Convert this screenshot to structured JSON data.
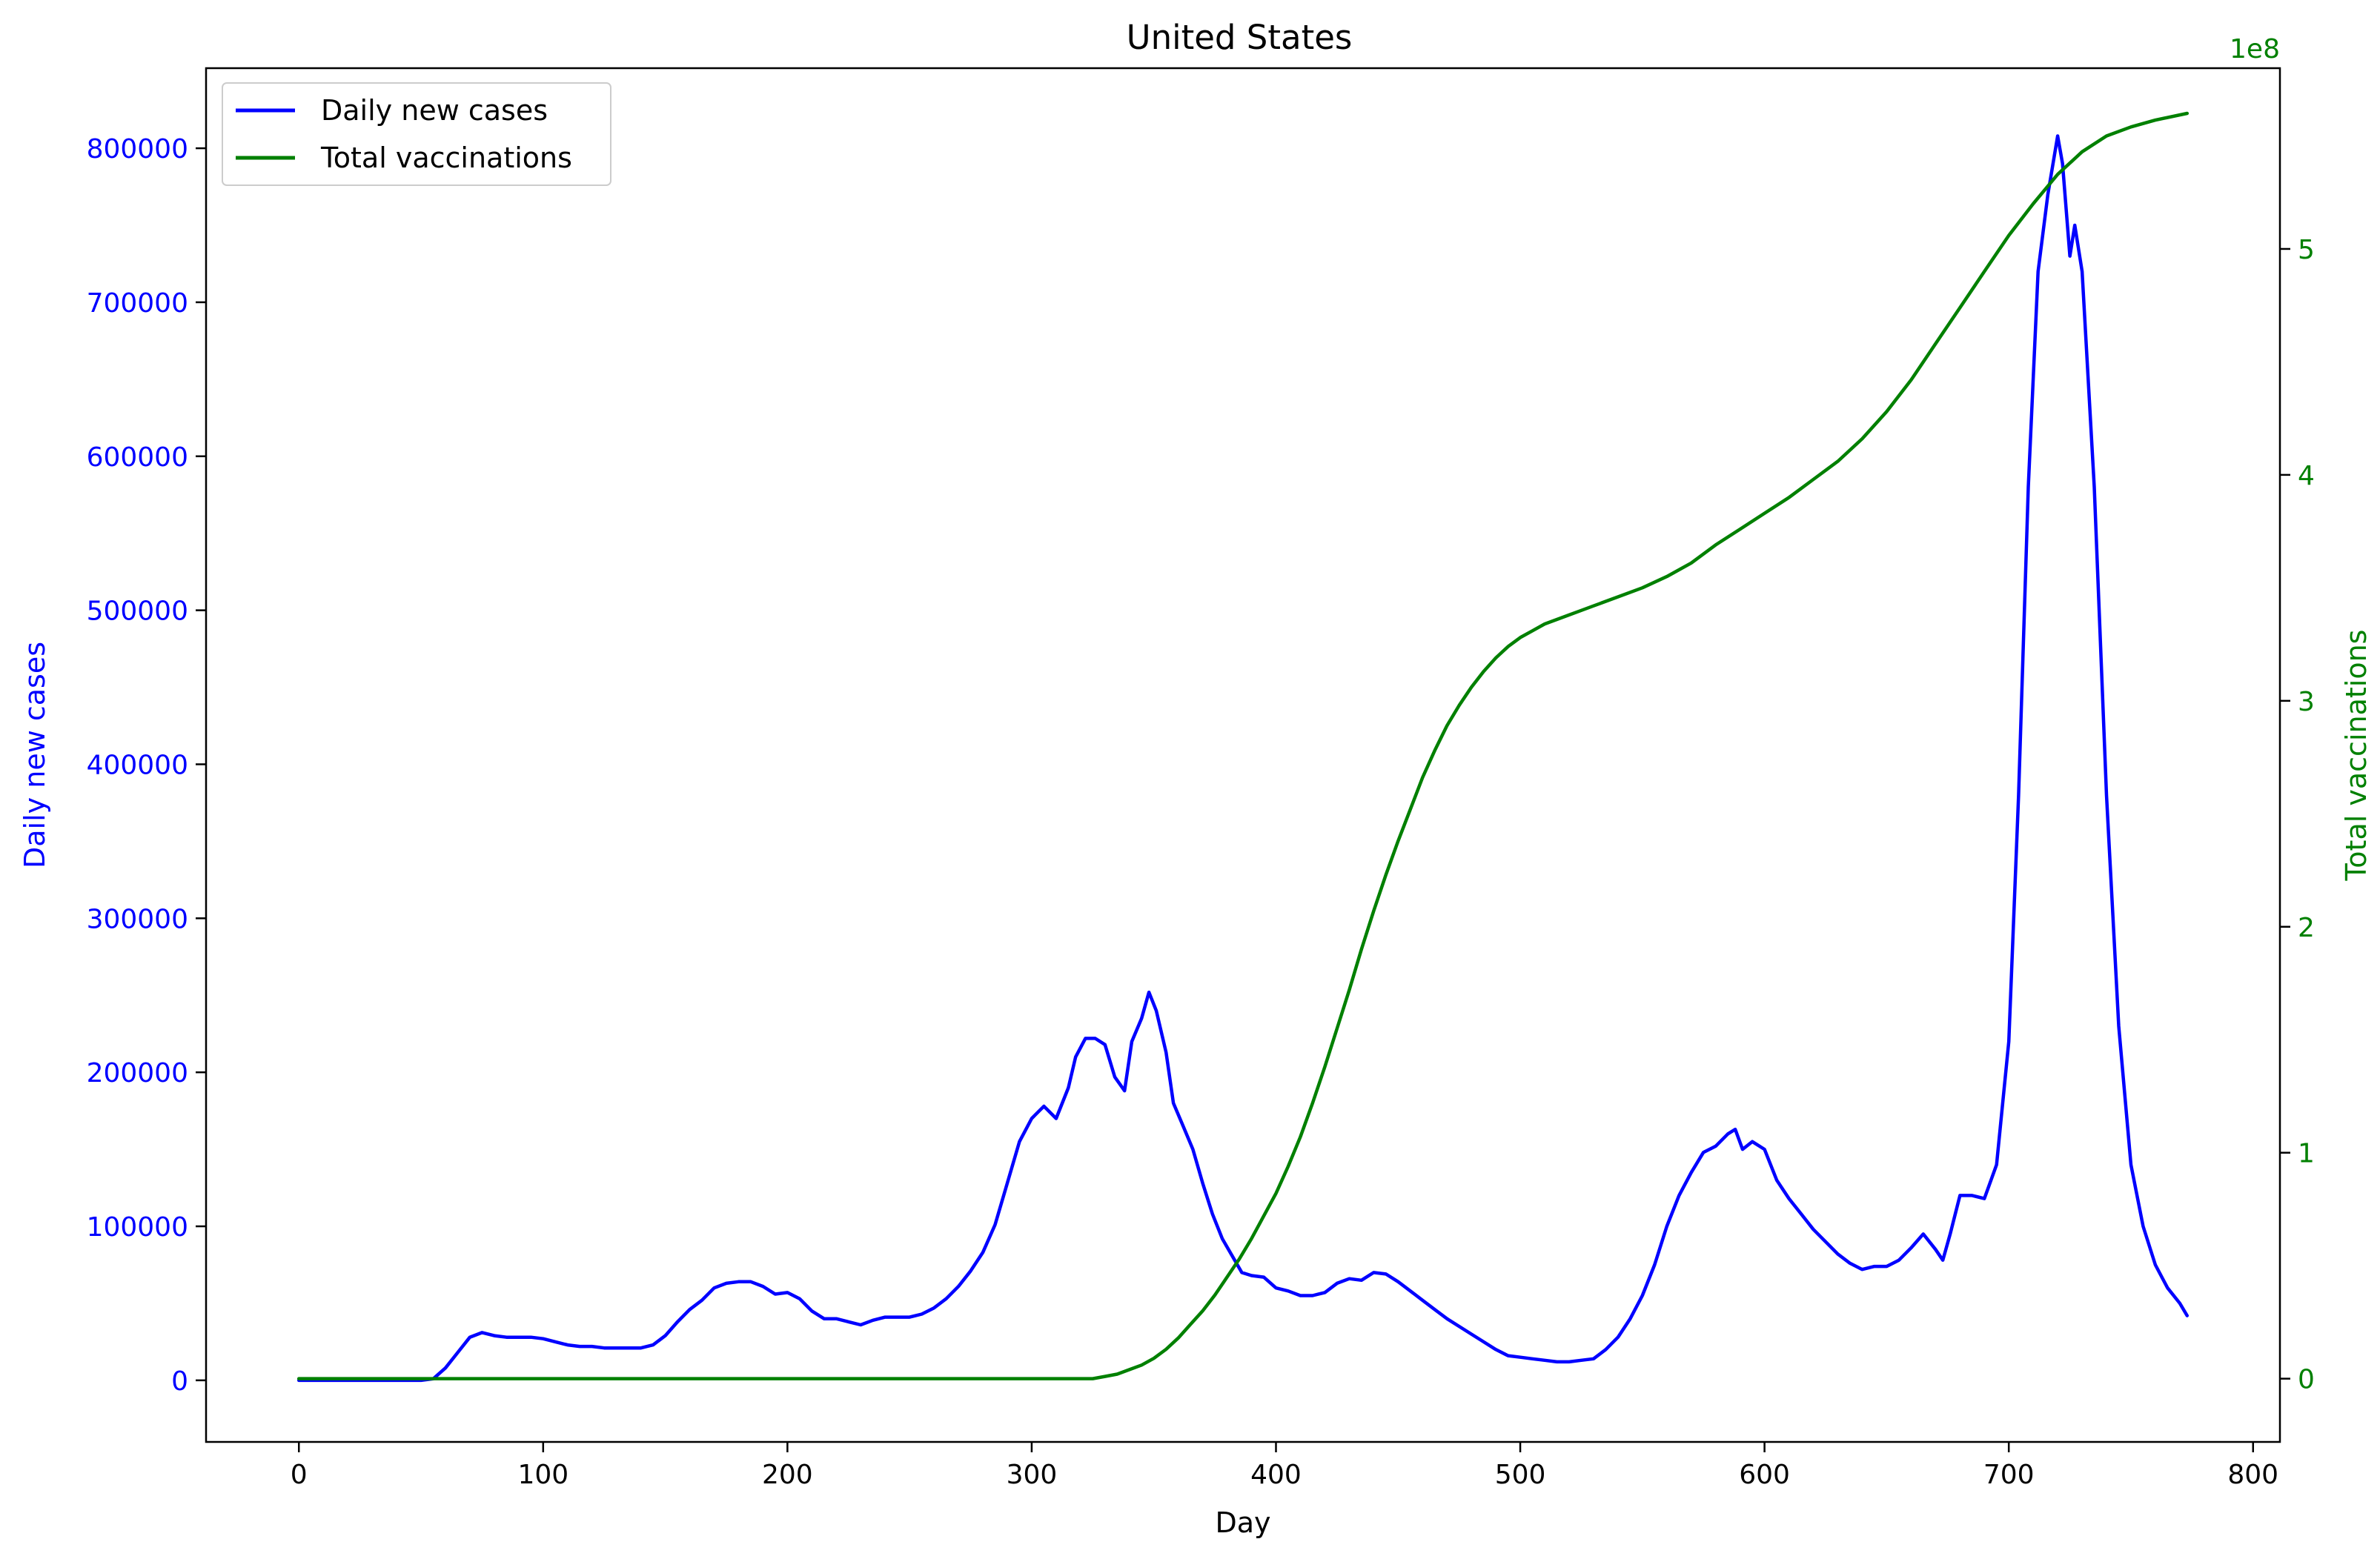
{
  "chart_data": {
    "type": "line",
    "title": "United States",
    "xlabel": "Day",
    "ylabel_left": "Daily new cases",
    "ylabel_right": "Total vaccinations",
    "right_axis_offset_label": "1e8",
    "xlim": [
      -38,
      811
    ],
    "ylim_left": [
      -40000,
      852000
    ],
    "ylim_right": [
      -0.28,
      5.8
    ],
    "x_ticks": [
      0,
      100,
      200,
      300,
      400,
      500,
      600,
      700,
      800
    ],
    "y_ticks_left": [
      0,
      100000,
      200000,
      300000,
      400000,
      500000,
      600000,
      700000,
      800000
    ],
    "y_ticks_right": [
      0,
      1,
      2,
      3,
      4,
      5
    ],
    "grid": false,
    "legend_position": "top-left",
    "colors": {
      "cases": "#0000ff",
      "vaccinations": "#008000",
      "axes": "#000000"
    },
    "series": [
      {
        "name": "Daily new cases",
        "axis": "left",
        "x": [
          0,
          20,
          40,
          50,
          55,
          60,
          65,
          70,
          75,
          80,
          85,
          90,
          95,
          100,
          105,
          110,
          115,
          120,
          125,
          130,
          135,
          140,
          145,
          150,
          155,
          160,
          165,
          170,
          175,
          180,
          185,
          190,
          195,
          200,
          205,
          210,
          215,
          220,
          225,
          230,
          235,
          240,
          245,
          250,
          255,
          260,
          265,
          270,
          275,
          280,
          285,
          290,
          295,
          300,
          305,
          310,
          315,
          318,
          322,
          326,
          330,
          334,
          338,
          341,
          345,
          348,
          351,
          355,
          358,
          362,
          366,
          370,
          374,
          378,
          382,
          386,
          390,
          395,
          400,
          405,
          410,
          415,
          420,
          425,
          430,
          435,
          440,
          445,
          450,
          455,
          460,
          465,
          470,
          475,
          480,
          485,
          490,
          495,
          500,
          505,
          510,
          515,
          520,
          525,
          530,
          535,
          540,
          545,
          550,
          555,
          560,
          565,
          570,
          575,
          580,
          585,
          588,
          591,
          595,
          600,
          605,
          610,
          615,
          620,
          625,
          630,
          635,
          640,
          645,
          650,
          655,
          660,
          665,
          670,
          673,
          676,
          680,
          685,
          690,
          695,
          700,
          704,
          708,
          712,
          716,
          720,
          722,
          725,
          727,
          730,
          735,
          740,
          745,
          750,
          755,
          760,
          765,
          770,
          773
        ],
        "y": [
          0,
          0,
          0,
          0,
          1000,
          8000,
          18000,
          28000,
          31000,
          29000,
          28000,
          28000,
          28000,
          27000,
          25000,
          23000,
          22000,
          22000,
          21000,
          21000,
          21000,
          21000,
          23000,
          29000,
          38000,
          46000,
          52000,
          60000,
          63000,
          64000,
          64000,
          61000,
          56000,
          57000,
          53000,
          45000,
          40000,
          40000,
          38000,
          36000,
          39000,
          41000,
          41000,
          41000,
          43000,
          47000,
          53000,
          61000,
          71000,
          83000,
          101000,
          128000,
          155000,
          170000,
          178000,
          170000,
          190000,
          210000,
          222000,
          222000,
          218000,
          197000,
          188000,
          220000,
          235000,
          252000,
          240000,
          213000,
          180000,
          165000,
          150000,
          128000,
          108000,
          92000,
          81000,
          70000,
          68000,
          67000,
          60000,
          58000,
          55000,
          55000,
          57000,
          63000,
          66000,
          65000,
          70000,
          69000,
          64000,
          58000,
          52000,
          46000,
          40000,
          35000,
          30000,
          25000,
          20000,
          16000,
          15000,
          14000,
          13000,
          12000,
          12000,
          13000,
          14000,
          20000,
          28000,
          40000,
          55000,
          75000,
          100000,
          120000,
          135000,
          148000,
          152000,
          160000,
          163000,
          150000,
          155000,
          150000,
          130000,
          118000,
          108000,
          98000,
          90000,
          82000,
          76000,
          72000,
          74000,
          74000,
          78000,
          86000,
          95000,
          85000,
          78000,
          95000,
          120000,
          120000,
          118000,
          140000,
          220000,
          380000,
          580000,
          720000,
          770000,
          808000,
          790000,
          730000,
          750000,
          720000,
          580000,
          380000,
          230000,
          140000,
          100000,
          75000,
          60000,
          50000,
          42000
        ]
      },
      {
        "name": "Total vaccinations",
        "axis": "right",
        "x": [
          0,
          100,
          200,
          300,
          325,
          330,
          335,
          340,
          345,
          350,
          355,
          360,
          365,
          370,
          375,
          380,
          385,
          390,
          395,
          400,
          405,
          410,
          415,
          420,
          425,
          430,
          435,
          440,
          445,
          450,
          455,
          460,
          465,
          470,
          475,
          480,
          485,
          490,
          495,
          500,
          505,
          510,
          515,
          520,
          525,
          530,
          540,
          550,
          560,
          570,
          580,
          590,
          600,
          610,
          620,
          630,
          640,
          650,
          660,
          670,
          680,
          690,
          700,
          710,
          720,
          730,
          740,
          750,
          760,
          773
        ],
        "y": [
          0,
          0,
          0,
          0,
          0,
          0.01,
          0.02,
          0.04,
          0.06,
          0.09,
          0.13,
          0.18,
          0.24,
          0.3,
          0.37,
          0.45,
          0.53,
          0.62,
          0.72,
          0.82,
          0.94,
          1.07,
          1.22,
          1.38,
          1.55,
          1.72,
          1.9,
          2.07,
          2.23,
          2.38,
          2.52,
          2.66,
          2.78,
          2.89,
          2.98,
          3.06,
          3.13,
          3.19,
          3.24,
          3.28,
          3.31,
          3.34,
          3.36,
          3.38,
          3.4,
          3.42,
          3.46,
          3.5,
          3.55,
          3.61,
          3.69,
          3.76,
          3.83,
          3.9,
          3.98,
          4.06,
          4.16,
          4.28,
          4.42,
          4.58,
          4.74,
          4.9,
          5.06,
          5.2,
          5.33,
          5.43,
          5.5,
          5.54,
          5.57,
          5.6
        ]
      }
    ]
  }
}
